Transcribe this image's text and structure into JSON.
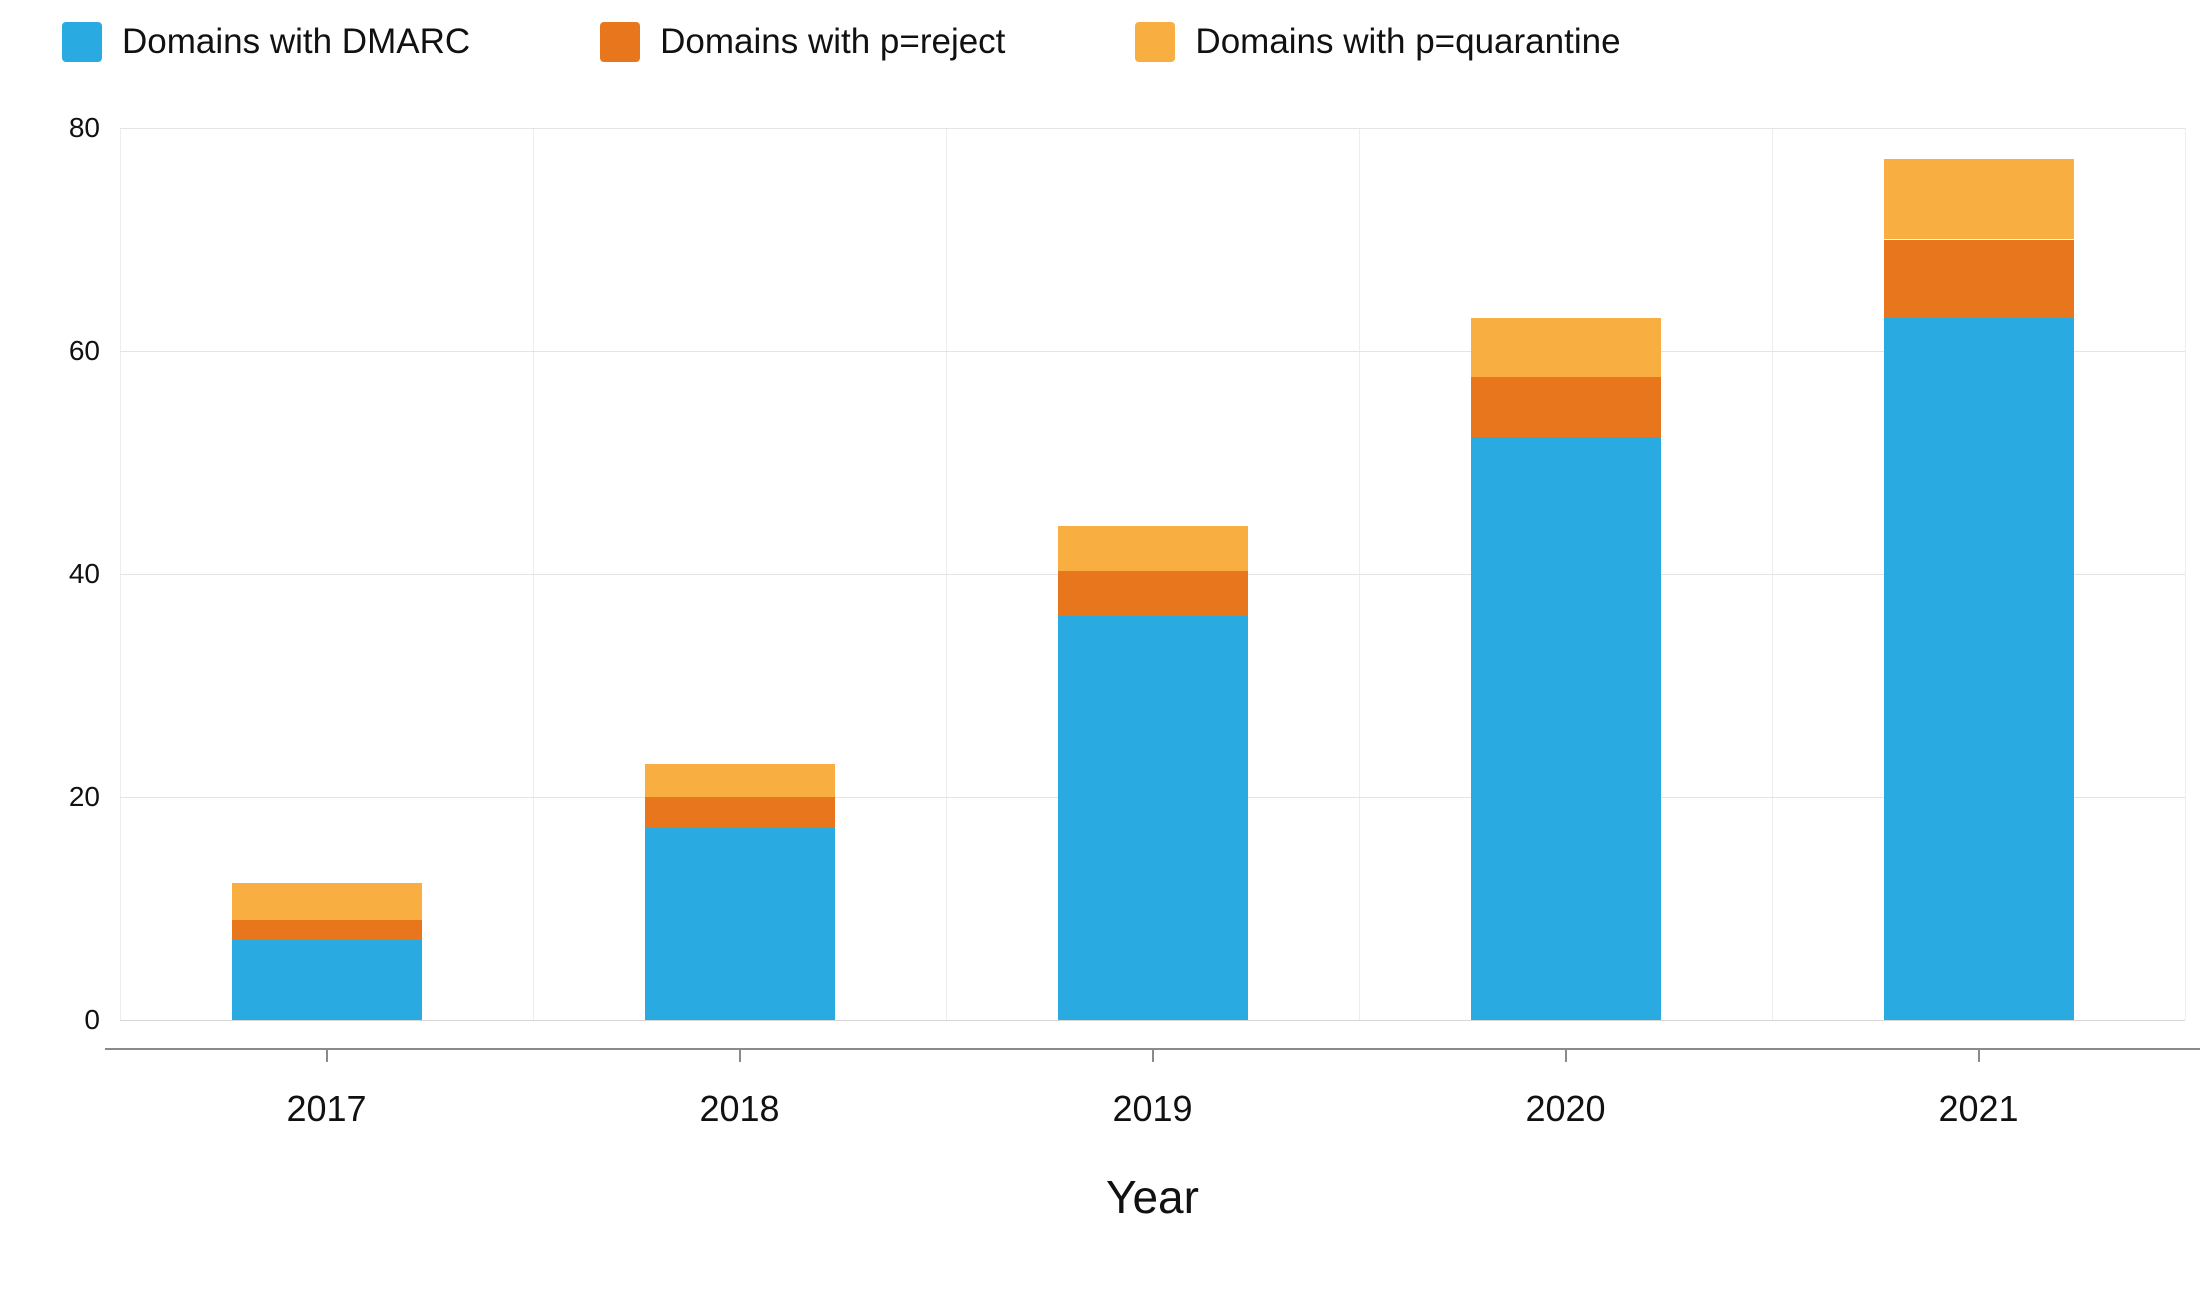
{
  "chart_data": {
    "type": "bar",
    "stacked": true,
    "title": "",
    "xlabel": "Year",
    "ylabel": "",
    "categories": [
      "2017",
      "2018",
      "2019",
      "2020",
      "2021"
    ],
    "series": [
      {
        "name": "Domains with DMARC",
        "color": "#29ABE2",
        "values": [
          7.2,
          17.2,
          36.2,
          52.3,
          63.0
        ]
      },
      {
        "name": "Domains with p=reject",
        "color": "#E8761D",
        "values": [
          1.8,
          2.8,
          4.1,
          5.4,
          7.0
        ]
      },
      {
        "name": "Domains with p=quarantine",
        "color": "#F9AE42",
        "values": [
          3.3,
          3.0,
          4.0,
          5.3,
          7.2
        ]
      }
    ],
    "totals": [
      12.3,
      23.0,
      44.3,
      63.0,
      77.2
    ],
    "ylim": [
      0,
      80
    ],
    "yticks": [
      0,
      20,
      40,
      60,
      80
    ],
    "grid": true,
    "legend_position": "top-left"
  }
}
